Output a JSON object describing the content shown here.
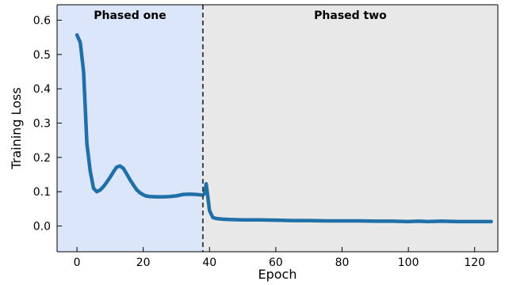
{
  "chart_data": {
    "type": "line",
    "title": "",
    "xlabel": "Epoch",
    "ylabel": "Training Loss",
    "xlim": [
      -6,
      127
    ],
    "ylim": [
      -0.075,
      0.645
    ],
    "xticks": [
      0,
      20,
      40,
      60,
      80,
      100,
      120
    ],
    "xtick_labels": [
      "0",
      "20",
      "40",
      "60",
      "80",
      "100",
      "120"
    ],
    "yticks": [
      0.0,
      0.1,
      0.2,
      0.3,
      0.4,
      0.5,
      0.6
    ],
    "ytick_labels": [
      "0.0",
      "0.1",
      "0.2",
      "0.3",
      "0.4",
      "0.5",
      "0.6"
    ],
    "grid": false,
    "regions": [
      {
        "label": "Phased one",
        "x_start": -6,
        "x_end": 38,
        "color": "#dbe6fb"
      },
      {
        "label": "Phased two",
        "x_start": 38,
        "x_end": 127,
        "color": "#e8e8e8"
      }
    ],
    "vline": {
      "x": 38,
      "style": "dashed",
      "color": "#444444"
    },
    "series": [
      {
        "color": "#1f6fa8",
        "x": [
          0,
          1,
          2,
          3,
          4,
          5,
          6,
          7,
          8,
          9,
          10,
          11,
          12,
          13,
          14,
          15,
          16,
          17,
          18,
          19,
          20,
          21,
          22,
          24,
          26,
          28,
          30,
          32,
          34,
          36,
          37,
          38,
          38.5,
          39,
          40,
          41,
          42,
          44,
          46,
          50,
          55,
          60,
          65,
          70,
          75,
          80,
          85,
          90,
          95,
          100,
          103,
          106,
          110,
          115,
          120,
          125
        ],
        "y": [
          0.557,
          0.535,
          0.45,
          0.24,
          0.16,
          0.11,
          0.1,
          0.105,
          0.115,
          0.128,
          0.142,
          0.158,
          0.172,
          0.175,
          0.168,
          0.152,
          0.135,
          0.12,
          0.106,
          0.097,
          0.091,
          0.087,
          0.086,
          0.085,
          0.085,
          0.086,
          0.088,
          0.092,
          0.093,
          0.092,
          0.091,
          0.09,
          0.095,
          0.123,
          0.045,
          0.025,
          0.022,
          0.02,
          0.019,
          0.018,
          0.018,
          0.017,
          0.016,
          0.016,
          0.015,
          0.015,
          0.015,
          0.014,
          0.014,
          0.013,
          0.014,
          0.013,
          0.014,
          0.013,
          0.013,
          0.013
        ]
      }
    ],
    "annotations": [
      "Phased one",
      "Phased two"
    ]
  }
}
